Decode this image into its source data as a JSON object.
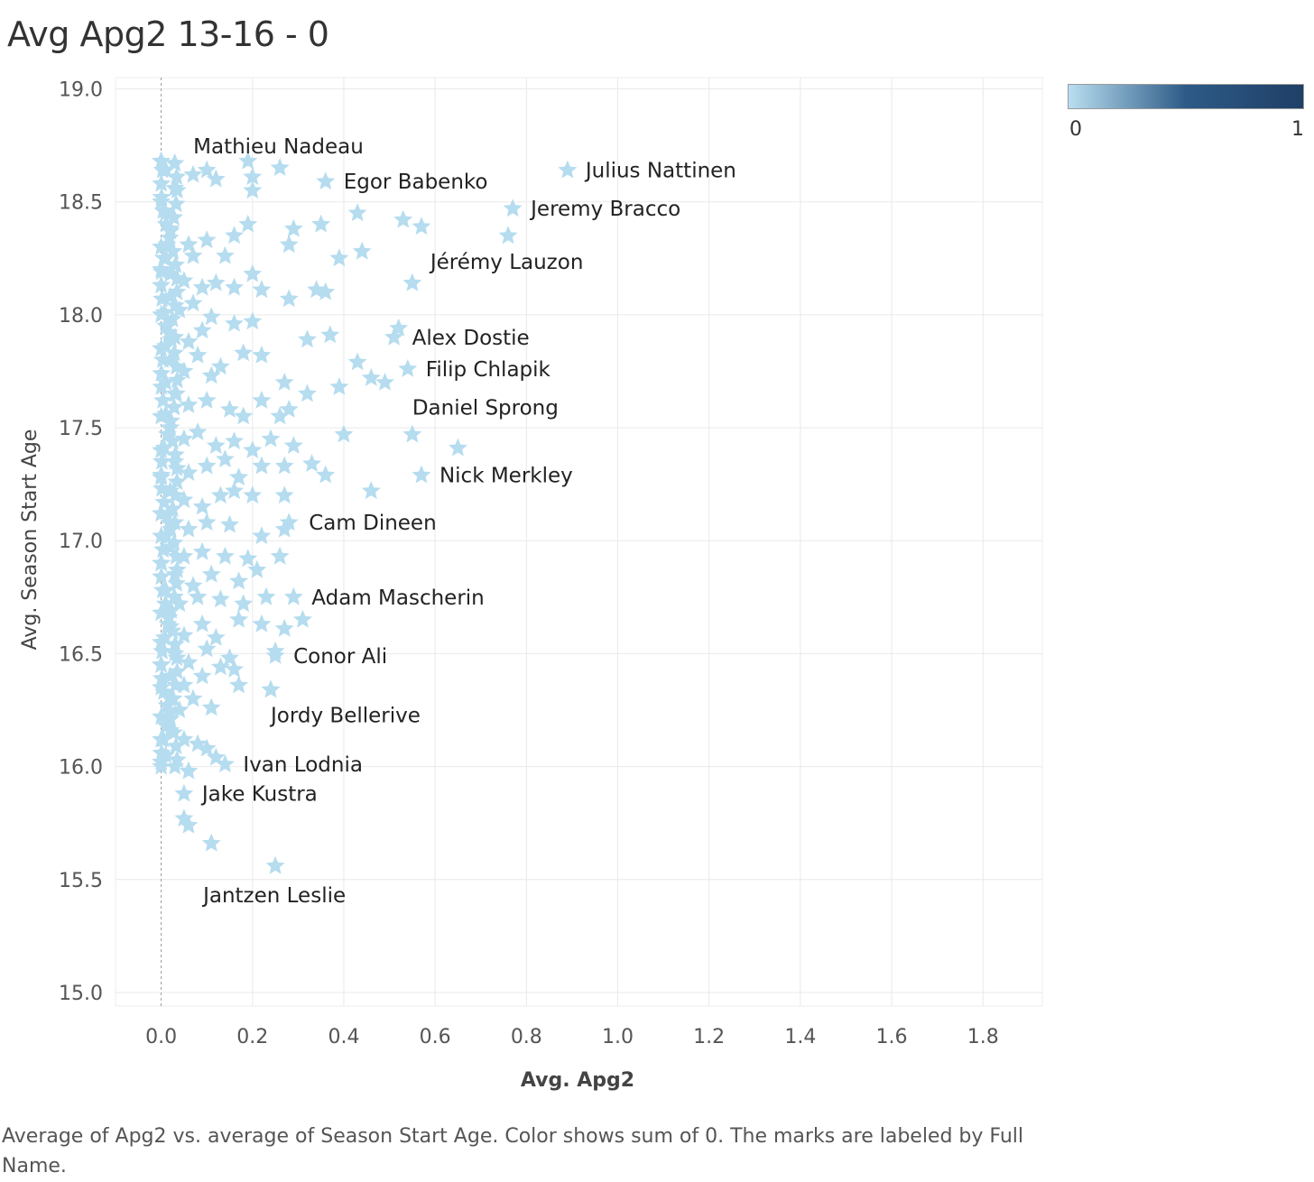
{
  "title": "Avg Apg2 13-16 - 0",
  "caption": "Average of Apg2 vs. average of Season Start Age.  Color shows sum of 0.  The marks are labeled by Full Name.",
  "legend": {
    "min_label": "0",
    "max_label": "1",
    "colors": [
      "#b9def0",
      "#2d5b87",
      "#1f3f66"
    ]
  },
  "chart_data": {
    "type": "scatter",
    "title": "Avg Apg2 13-16 - 0",
    "xlabel": "Avg. Apg2",
    "ylabel": "Avg. Season Start Age",
    "xlim": [
      -0.1,
      1.93
    ],
    "ylim": [
      14.94,
      19.05
    ],
    "xticks": [
      0.0,
      0.2,
      0.4,
      0.6,
      0.8,
      1.0,
      1.2,
      1.4,
      1.6,
      1.8
    ],
    "xtick_labels": [
      "0.0",
      "0.2",
      "0.4",
      "0.6",
      "0.8",
      "1.0",
      "1.2",
      "1.4",
      "1.6",
      "1.8"
    ],
    "yticks": [
      15.0,
      15.5,
      16.0,
      16.5,
      17.0,
      17.5,
      18.0,
      18.5,
      19.0
    ],
    "ytick_labels": [
      "15.0",
      "15.5",
      "16.0",
      "16.5",
      "17.0",
      "17.5",
      "18.0",
      "18.5",
      "19.0"
    ],
    "grid": true,
    "marker": "star",
    "marker_color": "#b5dcef",
    "zero_line": "dotted at x=0",
    "labeled_points": [
      {
        "name": "Mathieu Nadeau",
        "x": 0.26,
        "y": 18.65
      },
      {
        "name": "Julius  Nattinen",
        "x": 0.89,
        "y": 18.64
      },
      {
        "name": "Egor Babenko",
        "x": 0.36,
        "y": 18.59
      },
      {
        "name": "Jeremy Bracco",
        "x": 0.77,
        "y": 18.47
      },
      {
        "name": "Jérémy Lauzon",
        "x": 0.55,
        "y": 18.14
      },
      {
        "name": "Alex Dostie",
        "x": 0.51,
        "y": 17.9
      },
      {
        "name": "Filip Chlapik",
        "x": 0.54,
        "y": 17.76
      },
      {
        "name": "Daniel Sprong",
        "x": 0.55,
        "y": 17.47
      },
      {
        "name": "Nick Merkley",
        "x": 0.57,
        "y": 17.29
      },
      {
        "name": "Cam Dineen",
        "x": 0.28,
        "y": 17.08
      },
      {
        "name": "Adam Mascherin",
        "x": 0.29,
        "y": 16.75
      },
      {
        "name": "Conor Ali",
        "x": 0.25,
        "y": 16.49
      },
      {
        "name": "Jordy Bellerive",
        "x": 0.24,
        "y": 16.34
      },
      {
        "name": "Ivan Lodnia",
        "x": 0.14,
        "y": 16.01
      },
      {
        "name": "Jake Kustra",
        "x": 0.05,
        "y": 15.88
      },
      {
        "name": "Jantzen Leslie",
        "x": 0.25,
        "y": 15.56
      }
    ],
    "points": [
      [
        0.0,
        18.68
      ],
      [
        0.01,
        18.64
      ],
      [
        0.03,
        18.67
      ],
      [
        0.07,
        18.62
      ],
      [
        0.1,
        18.64
      ],
      [
        0.12,
        18.6
      ],
      [
        0.19,
        18.68
      ],
      [
        0.2,
        18.61
      ],
      [
        0.2,
        18.55
      ],
      [
        0.03,
        18.56
      ],
      [
        0.0,
        18.5
      ],
      [
        0.01,
        18.45
      ],
      [
        0.02,
        18.38
      ],
      [
        0.06,
        18.31
      ],
      [
        0.1,
        18.33
      ],
      [
        0.16,
        18.35
      ],
      [
        0.19,
        18.4
      ],
      [
        0.29,
        18.38
      ],
      [
        0.35,
        18.4
      ],
      [
        0.43,
        18.45
      ],
      [
        0.53,
        18.42
      ],
      [
        0.57,
        18.39
      ],
      [
        0.76,
        18.35
      ],
      [
        0.28,
        18.31
      ],
      [
        0.39,
        18.25
      ],
      [
        0.44,
        18.28
      ],
      [
        0.14,
        18.26
      ],
      [
        0.07,
        18.26
      ],
      [
        0.0,
        18.3
      ],
      [
        0.01,
        18.25
      ],
      [
        0.0,
        18.2
      ],
      [
        0.02,
        18.18
      ],
      [
        0.05,
        18.15
      ],
      [
        0.09,
        18.12
      ],
      [
        0.12,
        18.14
      ],
      [
        0.16,
        18.12
      ],
      [
        0.2,
        18.18
      ],
      [
        0.22,
        18.11
      ],
      [
        0.28,
        18.07
      ],
      [
        0.34,
        18.11
      ],
      [
        0.36,
        18.1
      ],
      [
        0.02,
        18.08
      ],
      [
        0.04,
        18.02
      ],
      [
        0.07,
        18.05
      ],
      [
        0.11,
        17.99
      ],
      [
        0.16,
        17.96
      ],
      [
        0.2,
        17.97
      ],
      [
        0.0,
        18.0
      ],
      [
        0.01,
        17.95
      ],
      [
        0.03,
        17.9
      ],
      [
        0.06,
        17.88
      ],
      [
        0.09,
        17.93
      ],
      [
        0.32,
        17.89
      ],
      [
        0.37,
        17.91
      ],
      [
        0.52,
        17.94
      ],
      [
        0.43,
        17.79
      ],
      [
        0.46,
        17.72
      ],
      [
        0.49,
        17.7
      ],
      [
        0.27,
        17.7
      ],
      [
        0.39,
        17.68
      ],
      [
        0.32,
        17.65
      ],
      [
        0.0,
        17.85
      ],
      [
        0.02,
        17.8
      ],
      [
        0.05,
        17.75
      ],
      [
        0.08,
        17.82
      ],
      [
        0.11,
        17.73
      ],
      [
        0.13,
        17.77
      ],
      [
        0.18,
        17.83
      ],
      [
        0.22,
        17.82
      ],
      [
        0.01,
        17.7
      ],
      [
        0.03,
        17.65
      ],
      [
        0.06,
        17.6
      ],
      [
        0.1,
        17.62
      ],
      [
        0.15,
        17.58
      ],
      [
        0.18,
        17.55
      ],
      [
        0.22,
        17.62
      ],
      [
        0.26,
        17.55
      ],
      [
        0.28,
        17.58
      ],
      [
        0.0,
        17.55
      ],
      [
        0.02,
        17.5
      ],
      [
        0.05,
        17.45
      ],
      [
        0.08,
        17.48
      ],
      [
        0.12,
        17.42
      ],
      [
        0.16,
        17.44
      ],
      [
        0.2,
        17.4
      ],
      [
        0.24,
        17.45
      ],
      [
        0.29,
        17.42
      ],
      [
        0.4,
        17.47
      ],
      [
        0.65,
        17.41
      ],
      [
        0.0,
        17.4
      ],
      [
        0.03,
        17.35
      ],
      [
        0.06,
        17.3
      ],
      [
        0.1,
        17.33
      ],
      [
        0.14,
        17.36
      ],
      [
        0.17,
        17.28
      ],
      [
        0.22,
        17.33
      ],
      [
        0.27,
        17.33
      ],
      [
        0.33,
        17.34
      ],
      [
        0.36,
        17.29
      ],
      [
        0.0,
        17.28
      ],
      [
        0.02,
        17.22
      ],
      [
        0.05,
        17.18
      ],
      [
        0.09,
        17.15
      ],
      [
        0.13,
        17.2
      ],
      [
        0.16,
        17.22
      ],
      [
        0.2,
        17.2
      ],
      [
        0.27,
        17.2
      ],
      [
        0.46,
        17.22
      ],
      [
        0.0,
        17.12
      ],
      [
        0.03,
        17.08
      ],
      [
        0.06,
        17.05
      ],
      [
        0.1,
        17.08
      ],
      [
        0.15,
        17.07
      ],
      [
        0.22,
        17.02
      ],
      [
        0.27,
        17.05
      ],
      [
        0.0,
        17.02
      ],
      [
        0.02,
        16.97
      ],
      [
        0.05,
        16.93
      ],
      [
        0.09,
        16.95
      ],
      [
        0.14,
        16.93
      ],
      [
        0.19,
        16.92
      ],
      [
        0.26,
        16.93
      ],
      [
        0.0,
        16.9
      ],
      [
        0.03,
        16.85
      ],
      [
        0.07,
        16.8
      ],
      [
        0.11,
        16.85
      ],
      [
        0.17,
        16.82
      ],
      [
        0.21,
        16.87
      ],
      [
        0.01,
        16.78
      ],
      [
        0.04,
        16.72
      ],
      [
        0.08,
        16.75
      ],
      [
        0.13,
        16.74
      ],
      [
        0.18,
        16.72
      ],
      [
        0.23,
        16.75
      ],
      [
        0.31,
        16.65
      ],
      [
        0.27,
        16.61
      ],
      [
        0.0,
        16.68
      ],
      [
        0.02,
        16.62
      ],
      [
        0.05,
        16.58
      ],
      [
        0.09,
        16.63
      ],
      [
        0.12,
        16.57
      ],
      [
        0.17,
        16.65
      ],
      [
        0.22,
        16.63
      ],
      [
        0.0,
        16.55
      ],
      [
        0.03,
        16.5
      ],
      [
        0.06,
        16.46
      ],
      [
        0.1,
        16.52
      ],
      [
        0.15,
        16.48
      ],
      [
        0.25,
        16.51
      ],
      [
        0.0,
        16.45
      ],
      [
        0.02,
        16.4
      ],
      [
        0.05,
        16.36
      ],
      [
        0.09,
        16.4
      ],
      [
        0.13,
        16.44
      ],
      [
        0.16,
        16.43
      ],
      [
        0.17,
        16.36
      ],
      [
        0.24,
        16.34
      ],
      [
        0.0,
        16.35
      ],
      [
        0.02,
        16.3
      ],
      [
        0.04,
        16.25
      ],
      [
        0.07,
        16.3
      ],
      [
        0.11,
        16.26
      ],
      [
        0.0,
        16.22
      ],
      [
        0.02,
        16.16
      ],
      [
        0.05,
        16.12
      ],
      [
        0.08,
        16.1
      ],
      [
        0.1,
        16.08
      ],
      [
        0.12,
        16.04
      ],
      [
        0.0,
        16.12
      ],
      [
        0.01,
        16.05
      ],
      [
        0.03,
        16.0
      ],
      [
        0.06,
        15.98
      ],
      [
        0.0,
        16.02
      ],
      [
        0.05,
        15.77
      ],
      [
        0.06,
        15.74
      ],
      [
        0.11,
        15.66
      ]
    ]
  }
}
